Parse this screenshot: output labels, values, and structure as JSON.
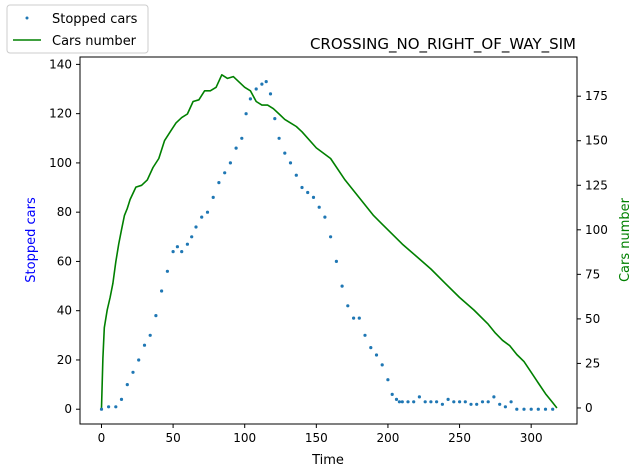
{
  "chart_data": {
    "type": "line",
    "title": "CROSSING_NO_RIGHT_OF_WAY_SIM",
    "xlabel": "Time",
    "ylabel_left": "Stopped cars",
    "ylabel_right": "Cars number",
    "xlim": [
      -15,
      332
    ],
    "ylim_left": [
      -6,
      143
    ],
    "ylim_right": [
      -9,
      197
    ],
    "xticks": [
      0,
      50,
      100,
      150,
      200,
      250,
      300
    ],
    "yticks_left": [
      0,
      20,
      40,
      60,
      80,
      100,
      120,
      140
    ],
    "yticks_right": [
      0,
      25,
      50,
      75,
      100,
      125,
      150,
      175
    ],
    "grid": false,
    "legend_position": "above-left",
    "series": [
      {
        "name": "Stopped cars",
        "style": "scatter",
        "axis": "left",
        "color": "#1f77b4",
        "x": [
          0,
          5,
          10,
          14,
          18,
          22,
          26,
          30,
          34,
          38,
          42,
          46,
          50,
          53,
          56,
          60,
          63,
          66,
          70,
          74,
          78,
          82,
          86,
          90,
          94,
          98,
          101,
          104,
          108,
          112,
          115,
          118,
          121,
          124,
          128,
          132,
          136,
          140,
          144,
          148,
          152,
          156,
          160,
          164,
          168,
          172,
          176,
          180,
          184,
          188,
          192,
          196,
          200,
          203,
          206,
          208,
          210,
          214,
          218,
          222,
          226,
          230,
          234,
          238,
          242,
          246,
          250,
          254,
          258,
          262,
          266,
          270,
          274,
          278,
          282,
          286,
          290,
          295,
          300,
          305,
          310,
          315
        ],
        "y": [
          0,
          1,
          1,
          4,
          10,
          15,
          20,
          26,
          30,
          38,
          48,
          56,
          64,
          66,
          64,
          67,
          70,
          74,
          78,
          80,
          86,
          92,
          96,
          100,
          106,
          110,
          120,
          126,
          130,
          132,
          133,
          128,
          118,
          110,
          104,
          100,
          95,
          90,
          88,
          86,
          82,
          78,
          70,
          60,
          50,
          42,
          37,
          37,
          30,
          25,
          22,
          18,
          12,
          6,
          4,
          3,
          3,
          3,
          3,
          5,
          3,
          3,
          3,
          2,
          4,
          3,
          3,
          3,
          2,
          2,
          3,
          3,
          5,
          2,
          1,
          3,
          0,
          0,
          0,
          0,
          0,
          0
        ]
      },
      {
        "name": "Cars number",
        "style": "line",
        "axis": "right",
        "color": "#008000",
        "x": [
          0,
          1,
          2,
          4,
          6,
          8,
          10,
          12,
          14,
          16,
          18,
          20,
          24,
          28,
          32,
          36,
          40,
          44,
          48,
          52,
          56,
          60,
          64,
          68,
          72,
          76,
          80,
          84,
          88,
          92,
          96,
          100,
          104,
          108,
          112,
          116,
          120,
          124,
          128,
          132,
          136,
          140,
          150,
          160,
          170,
          180,
          190,
          200,
          210,
          220,
          230,
          240,
          250,
          260,
          270,
          275,
          280,
          285,
          290,
          295,
          300,
          305,
          310,
          315,
          318
        ],
        "y": [
          0,
          28,
          45,
          55,
          62,
          70,
          82,
          92,
          100,
          108,
          112,
          117,
          124,
          125,
          128,
          135,
          140,
          150,
          155,
          160,
          163,
          165,
          172,
          173,
          178,
          178,
          180,
          187,
          185,
          186,
          183,
          180,
          178,
          172,
          170,
          170,
          168,
          165,
          162,
          160,
          158,
          155,
          146,
          140,
          128,
          118,
          108,
          100,
          92,
          85,
          78,
          70,
          62,
          55,
          47,
          42,
          38,
          35,
          30,
          26,
          20,
          14,
          8,
          3,
          0
        ]
      }
    ]
  }
}
